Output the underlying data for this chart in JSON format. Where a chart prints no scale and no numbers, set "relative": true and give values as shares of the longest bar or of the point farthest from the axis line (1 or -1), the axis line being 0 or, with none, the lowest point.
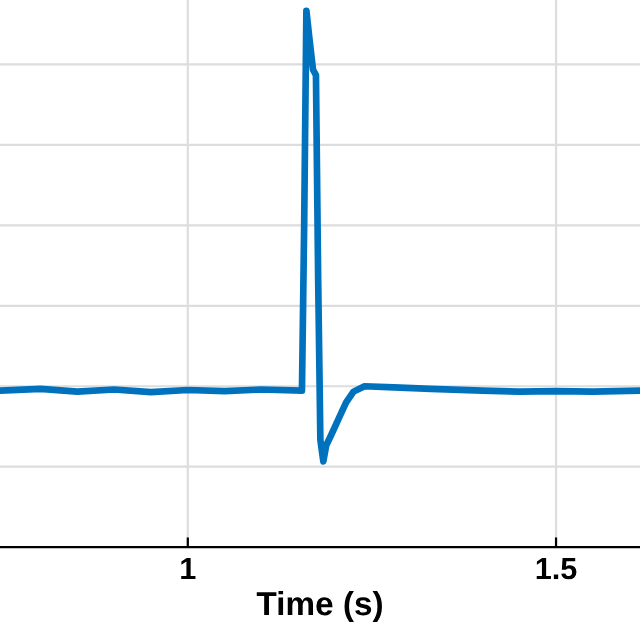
{
  "chart_data": {
    "type": "line",
    "xlabel": "Time (s)",
    "relative": true,
    "xlim": [
      0.745,
      1.614
    ],
    "xticks": [
      1,
      1.5
    ],
    "grid": true,
    "tick_labels": "x",
    "series": [
      {
        "color": "#0072bd",
        "x": [
          0.745,
          0.8,
          0.85,
          0.9,
          0.95,
          1.0,
          1.05,
          1.1,
          1.155,
          1.158,
          1.161,
          1.165,
          1.17,
          1.174,
          1.177,
          1.18,
          1.184,
          1.188,
          1.195,
          1.205,
          1.215,
          1.225,
          1.24,
          1.28,
          1.33,
          1.4,
          1.45,
          1.5,
          1.55,
          1.614
        ],
        "values": [
          0.292,
          0.295,
          0.29,
          0.294,
          0.289,
          0.293,
          0.291,
          0.294,
          0.292,
          0.6,
          1.0,
          0.95,
          0.89,
          0.88,
          0.5,
          0.2,
          0.16,
          0.19,
          0.21,
          0.24,
          0.27,
          0.29,
          0.3,
          0.298,
          0.295,
          0.292,
          0.29,
          0.291,
          0.29,
          0.292
        ]
      }
    ]
  }
}
